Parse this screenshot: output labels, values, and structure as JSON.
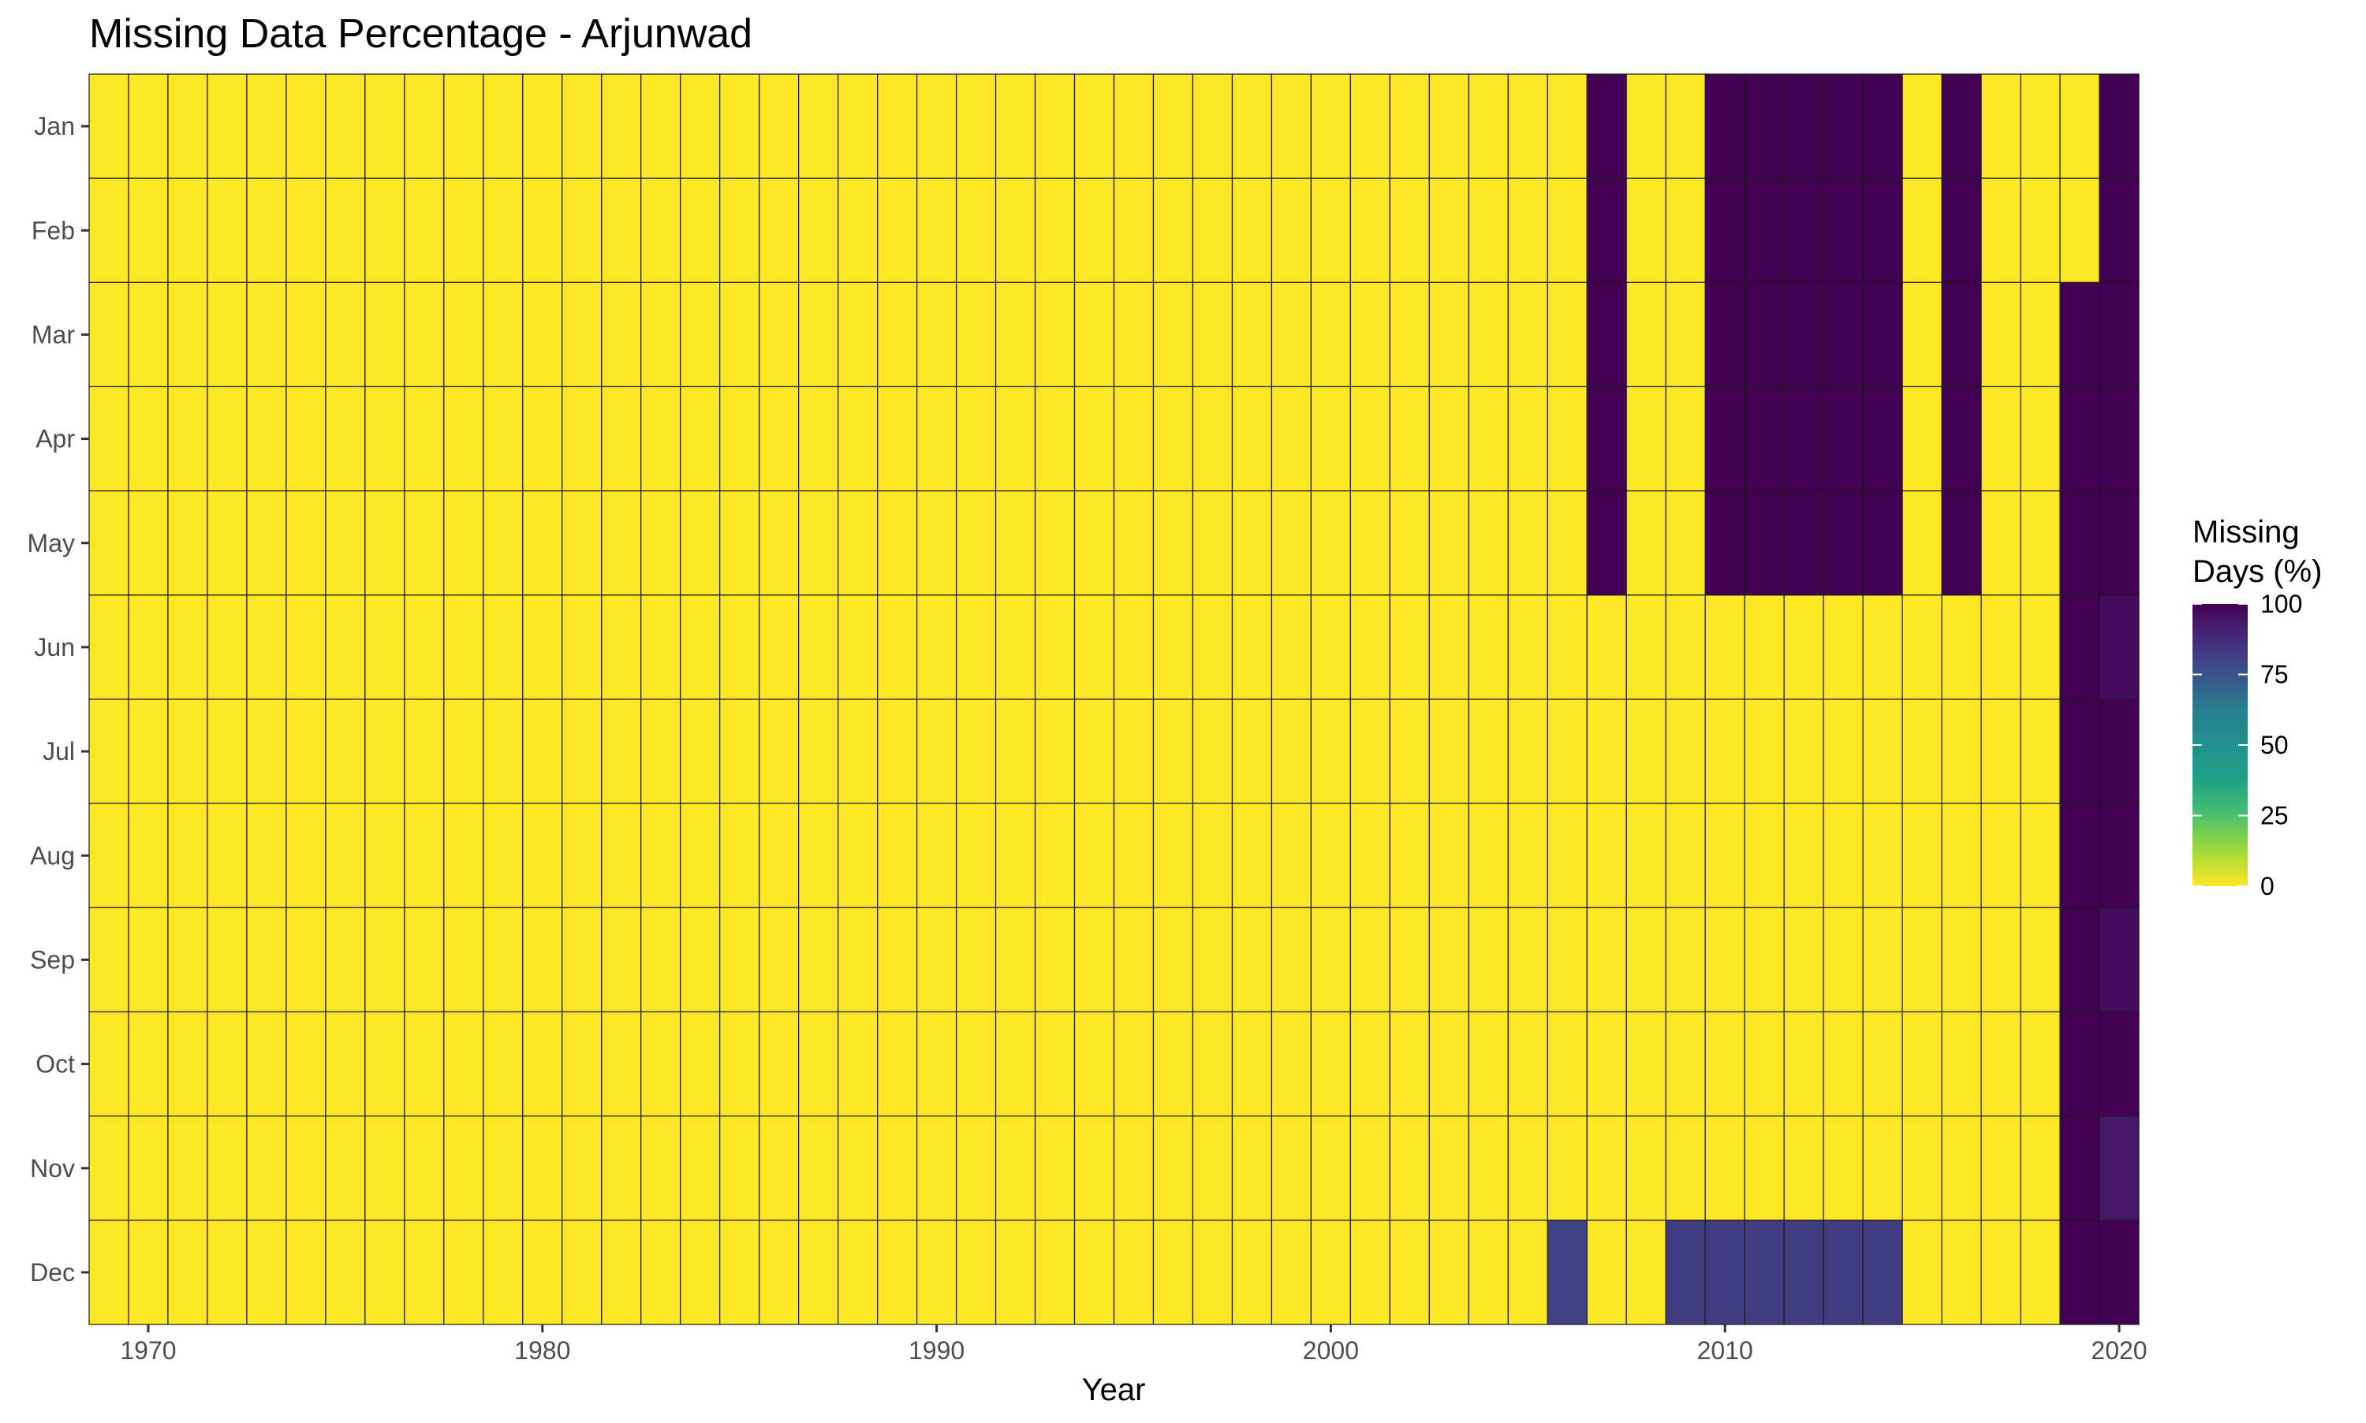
{
  "chart_data": {
    "type": "heatmap",
    "title": "Missing Data Percentage - Arjunwad",
    "xlabel": "Year",
    "ylabel": "",
    "x_range": [
      1969,
      2020
    ],
    "x_ticks": [
      1970,
      1980,
      1990,
      2000,
      2010,
      2020
    ],
    "y_categories": [
      "Jan",
      "Feb",
      "Mar",
      "Apr",
      "May",
      "Jun",
      "Jul",
      "Aug",
      "Sep",
      "Oct",
      "Nov",
      "Dec"
    ],
    "grid": "off",
    "legend": {
      "title_line1": "Missing",
      "title_line2": "Days (%)",
      "placement": "right",
      "colormap": "viridis (reversed)",
      "ticks": [
        0,
        25,
        50,
        75,
        100
      ],
      "range": [
        0,
        100
      ]
    },
    "default_value": 0,
    "nonzero_values": [
      {
        "year": 2006,
        "month": "Dec",
        "value": 80
      },
      {
        "year": 2007,
        "month": "Jan",
        "value": 100
      },
      {
        "year": 2007,
        "month": "Feb",
        "value": 100
      },
      {
        "year": 2007,
        "month": "Mar",
        "value": 100
      },
      {
        "year": 2007,
        "month": "Apr",
        "value": 100
      },
      {
        "year": 2007,
        "month": "May",
        "value": 100
      },
      {
        "year": 2009,
        "month": "Dec",
        "value": 82
      },
      {
        "year": 2010,
        "month": "Jan",
        "value": 100
      },
      {
        "year": 2010,
        "month": "Feb",
        "value": 100
      },
      {
        "year": 2010,
        "month": "Mar",
        "value": 100
      },
      {
        "year": 2010,
        "month": "Apr",
        "value": 100
      },
      {
        "year": 2010,
        "month": "May",
        "value": 100
      },
      {
        "year": 2010,
        "month": "Dec",
        "value": 82
      },
      {
        "year": 2011,
        "month": "Jan",
        "value": 100
      },
      {
        "year": 2011,
        "month": "Feb",
        "value": 100
      },
      {
        "year": 2011,
        "month": "Mar",
        "value": 100
      },
      {
        "year": 2011,
        "month": "Apr",
        "value": 100
      },
      {
        "year": 2011,
        "month": "May",
        "value": 100
      },
      {
        "year": 2011,
        "month": "Dec",
        "value": 82
      },
      {
        "year": 2012,
        "month": "Jan",
        "value": 100
      },
      {
        "year": 2012,
        "month": "Feb",
        "value": 100
      },
      {
        "year": 2012,
        "month": "Mar",
        "value": 100
      },
      {
        "year": 2012,
        "month": "Apr",
        "value": 100
      },
      {
        "year": 2012,
        "month": "May",
        "value": 100
      },
      {
        "year": 2012,
        "month": "Dec",
        "value": 82
      },
      {
        "year": 2013,
        "month": "Jan",
        "value": 100
      },
      {
        "year": 2013,
        "month": "Feb",
        "value": 100
      },
      {
        "year": 2013,
        "month": "Mar",
        "value": 100
      },
      {
        "year": 2013,
        "month": "Apr",
        "value": 100
      },
      {
        "year": 2013,
        "month": "May",
        "value": 100
      },
      {
        "year": 2013,
        "month": "Dec",
        "value": 82
      },
      {
        "year": 2014,
        "month": "Jan",
        "value": 100
      },
      {
        "year": 2014,
        "month": "Feb",
        "value": 100
      },
      {
        "year": 2014,
        "month": "Mar",
        "value": 100
      },
      {
        "year": 2014,
        "month": "Apr",
        "value": 100
      },
      {
        "year": 2014,
        "month": "May",
        "value": 100
      },
      {
        "year": 2014,
        "month": "Dec",
        "value": 82
      },
      {
        "year": 2016,
        "month": "Jan",
        "value": 100
      },
      {
        "year": 2016,
        "month": "Feb",
        "value": 100
      },
      {
        "year": 2016,
        "month": "Mar",
        "value": 100
      },
      {
        "year": 2016,
        "month": "Apr",
        "value": 100
      },
      {
        "year": 2016,
        "month": "May",
        "value": 100
      },
      {
        "year": 2019,
        "month": "Mar",
        "value": 100
      },
      {
        "year": 2019,
        "month": "Apr",
        "value": 100
      },
      {
        "year": 2019,
        "month": "May",
        "value": 100
      },
      {
        "year": 2019,
        "month": "Jun",
        "value": 100
      },
      {
        "year": 2019,
        "month": "Jul",
        "value": 100
      },
      {
        "year": 2019,
        "month": "Aug",
        "value": 100
      },
      {
        "year": 2019,
        "month": "Sep",
        "value": 100
      },
      {
        "year": 2019,
        "month": "Oct",
        "value": 100
      },
      {
        "year": 2019,
        "month": "Nov",
        "value": 100
      },
      {
        "year": 2019,
        "month": "Dec",
        "value": 100
      },
      {
        "year": 2020,
        "month": "Jan",
        "value": 100
      },
      {
        "year": 2020,
        "month": "Feb",
        "value": 100
      },
      {
        "year": 2020,
        "month": "Mar",
        "value": 100
      },
      {
        "year": 2020,
        "month": "Apr",
        "value": 100
      },
      {
        "year": 2020,
        "month": "May",
        "value": 100
      },
      {
        "year": 2020,
        "month": "Jun",
        "value": 97
      },
      {
        "year": 2020,
        "month": "Jul",
        "value": 100
      },
      {
        "year": 2020,
        "month": "Aug",
        "value": 100
      },
      {
        "year": 2020,
        "month": "Sep",
        "value": 97
      },
      {
        "year": 2020,
        "month": "Oct",
        "value": 100
      },
      {
        "year": 2020,
        "month": "Nov",
        "value": 93
      },
      {
        "year": 2020,
        "month": "Dec",
        "value": 100
      }
    ]
  }
}
